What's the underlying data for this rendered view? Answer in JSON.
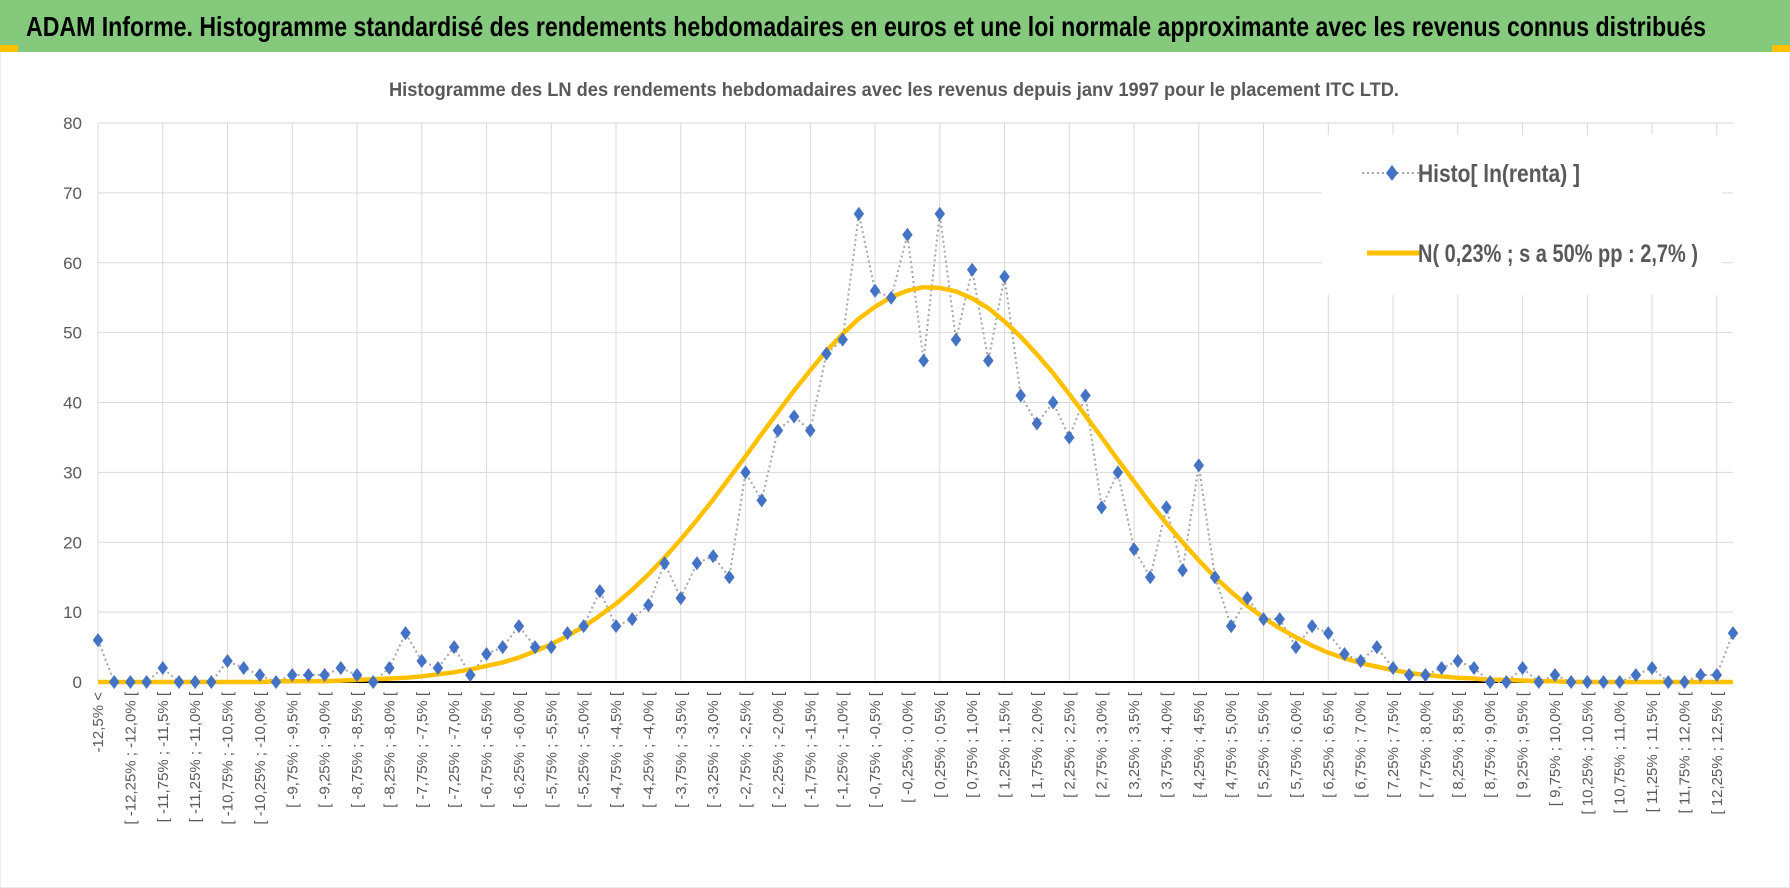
{
  "header": {
    "title": "ADAM Informe. Histogramme standardisé des rendements hebdomadaires en euros et une loi normale approximante avec les revenus connus distribués"
  },
  "chart_data": {
    "type": "line",
    "title": "Histogramme des LN des rendements hebdomadaires avec les revenus depuis janv 1997 pour le placement ITC LTD.",
    "categories": [
      "-12,5% <",
      null,
      "[ -12,25% ; -12,0% [",
      null,
      "[ -11,75% ; -11,5% [",
      null,
      "[ -11,25% ; -11,0% [",
      null,
      "[ -10,75% ; -10,5% [",
      null,
      "[ -10,25% ; -10,0% [",
      null,
      "[ -9,75% ; -9,5% [",
      null,
      "[ -9,25% ; -9,0% [",
      null,
      "[ -8,75% ; -8,5% [",
      null,
      "[ -8,25% ; -8,0% [",
      null,
      "[ -7,75% ; -7,5% [",
      null,
      "[ -7,25% ; -7,0% [",
      null,
      "[ -6,75% ; -6,5% [",
      null,
      "[ -6,25% ; -6,0% [",
      null,
      "[ -5,75% ; -5,5% [",
      null,
      "[ -5,25% ; -5,0% [",
      null,
      "[ -4,75% ; -4,5% [",
      null,
      "[ -4,25% ; -4,0% [",
      null,
      "[ -3,75% ; -3,5% [",
      null,
      "[ -3,25% ; -3,0% [",
      null,
      "[ -2,75% ; -2,5% [",
      null,
      "[ -2,25% ; -2,0% [",
      null,
      "[ -1,75% ; -1,5% [",
      null,
      "[ -1,25% ; -1,0% [",
      null,
      "[ -0,75% ; -0,5% [",
      null,
      "[ -0,25% ; 0,0% [",
      null,
      "[ 0,25% ; 0,5% [",
      null,
      "[ 0,75% ; 1,0% [",
      null,
      "[ 1,25% ; 1,5% [",
      null,
      "[ 1,75% ; 2,0% [",
      null,
      "[ 2,25% ; 2,5% [",
      null,
      "[ 2,75% ; 3,0% [",
      null,
      "[ 3,25% ; 3,5% [",
      null,
      "[ 3,75% ; 4,0% [",
      null,
      "[ 4,25% ; 4,5% [",
      null,
      "[ 4,75% ; 5,0% [",
      null,
      "[ 5,25% ; 5,5% [",
      null,
      "[ 5,75% ; 6,0% [",
      null,
      "[ 6,25% ; 6,5% [",
      null,
      "[ 6,75% ; 7,0% [",
      null,
      "[ 7,25% ; 7,5% [",
      null,
      "[ 7,75% ; 8,0% [",
      null,
      "[ 8,25% ; 8,5% [",
      null,
      "[ 8,75% ; 9,0% [",
      null,
      "[ 9,25% ; 9,5% [",
      null,
      "[ 9,75% ; 10,0% [",
      null,
      "[ 10,25% ; 10,5% [",
      null,
      "[ 10,75% ; 11,0% [",
      null,
      "[ 11,25% ; 11,5% [",
      null,
      "[ 11,75% ; 12,0% [",
      null,
      "[ 12,25% ; 12,5% [",
      null
    ],
    "series": [
      {
        "name": "Histo[ ln(renta) ]",
        "color": "#4472c4",
        "line_color": "#a6a6a6",
        "values": [
          6,
          0,
          0,
          0,
          2,
          0,
          0,
          0,
          3,
          2,
          1,
          0,
          1,
          1,
          1,
          2,
          1,
          0,
          2,
          7,
          3,
          2,
          5,
          1,
          4,
          5,
          8,
          5,
          5,
          7,
          8,
          13,
          8,
          9,
          11,
          17,
          12,
          17,
          18,
          15,
          30,
          26,
          36,
          38,
          36,
          47,
          49,
          67,
          56,
          55,
          64,
          46,
          67,
          49,
          59,
          46,
          58,
          41,
          37,
          40,
          35,
          41,
          25,
          30,
          19,
          15,
          25,
          16,
          31,
          15,
          8,
          12,
          9,
          9,
          5,
          8,
          7,
          4,
          3,
          5,
          2,
          1,
          1,
          2,
          3,
          2,
          0,
          0,
          2,
          0,
          1,
          0,
          0,
          0,
          0,
          1,
          2,
          0,
          0,
          1,
          1,
          7
        ]
      },
      {
        "name": "N( 0,23% ; s a 50% pp : 2,7% )",
        "color": "#ffc000",
        "values": [
          0,
          0,
          0,
          0,
          0,
          0,
          0,
          0,
          0,
          0,
          0,
          0.1,
          0.1,
          0.1,
          0.1,
          0.2,
          0.3,
          0.4,
          0.5,
          0.6,
          0.8,
          1.1,
          1.4,
          1.8,
          2.3,
          2.8,
          3.5,
          4.4,
          5.4,
          6.6,
          7.9,
          9.5,
          11.2,
          13.2,
          15.4,
          17.8,
          20.4,
          23.2,
          26.1,
          29.2,
          32.3,
          35.5,
          38.6,
          41.7,
          44.6,
          47.4,
          49.8,
          52.0,
          53.7,
          55.1,
          56.0,
          56.5,
          56.4,
          55.9,
          54.9,
          53.5,
          51.6,
          49.4,
          46.9,
          44.2,
          41.2,
          38.1,
          35.0,
          31.8,
          28.7,
          25.6,
          22.7,
          20.0,
          17.4,
          15.0,
          12.9,
          10.9,
          9.2,
          7.7,
          6.4,
          5.2,
          4.2,
          3.4,
          2.7,
          2.2,
          1.7,
          1.3,
          1.0,
          0.8,
          0.6,
          0.5,
          0.3,
          0.3,
          0.2,
          0.1,
          0.1,
          0,
          0,
          0,
          0,
          0,
          0,
          0,
          0,
          0,
          0,
          0
        ]
      }
    ],
    "ylim": [
      0,
      80
    ],
    "yticks": [
      0,
      10,
      20,
      30,
      40,
      50,
      60,
      70,
      80
    ],
    "grid": true,
    "legend": "top-right"
  }
}
